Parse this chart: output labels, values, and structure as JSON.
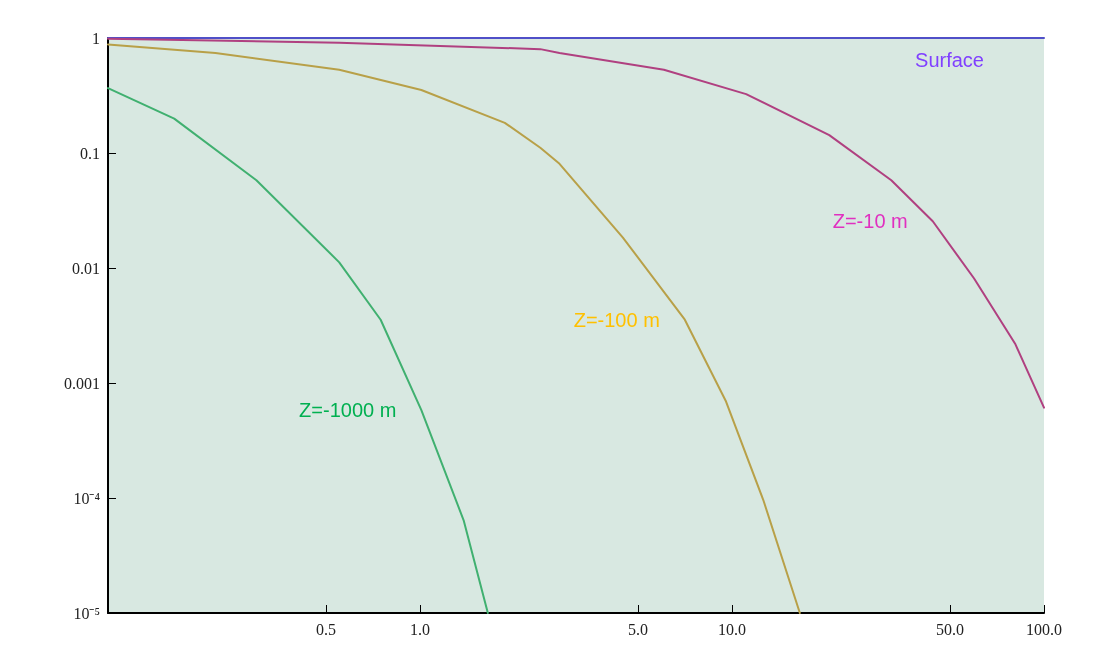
{
  "chart_data": {
    "type": "line",
    "log": "xy",
    "grid": false,
    "marker": "none",
    "line_style": "solid",
    "xlim": [
      0.1,
      100
    ],
    "ylim": [
      1e-05,
      1
    ],
    "xticks": [
      0.5,
      {
        "value": 1,
        "label": "1.0"
      },
      {
        "value": 5,
        "label": "5.0"
      },
      {
        "value": 10,
        "label": "10.0"
      },
      {
        "value": 50,
        "label": "50.0"
      },
      {
        "value": 100,
        "label": "100.0"
      }
    ],
    "yticks": [
      1,
      0.1,
      0.01,
      0.001,
      {
        "value": 0.0001,
        "label": "10⁻⁴"
      },
      {
        "value": 1e-05,
        "label": "10⁻⁵"
      }
    ],
    "series": [
      {
        "name": "Surface",
        "color": "#5050c8",
        "x": [
          0.1,
          100
        ],
        "values": [
          1,
          1
        ]
      },
      {
        "name": "Z=-10 m",
        "color": "#b04080",
        "x": [
          0.1,
          0.551,
          2.43,
          2.8,
          6.05,
          11.1,
          20.5,
          32.4,
          44,
          59.7,
          81,
          100
        ],
        "values": [
          0.985,
          0.91,
          0.8,
          0.74,
          0.53,
          0.325,
          0.143,
          0.058,
          0.0255,
          0.0081,
          0.00217,
          0.00061
        ]
      },
      {
        "name": "Z=-100 m",
        "color": "#b8a048",
        "x": [
          0.1,
          0.221,
          0.551,
          1.01,
          1.87,
          2.43,
          2.8,
          4.47,
          7.06,
          9.57,
          12.6,
          16.5
        ],
        "values": [
          0.88,
          0.74,
          0.53,
          0.353,
          0.183,
          0.111,
          0.0805,
          0.0184,
          0.00355,
          0.00069,
          9.6e-05,
          1e-05
        ]
      },
      {
        "name": "Z=-1000 m",
        "color": "#40b070",
        "x": [
          0.1,
          0.163,
          0.299,
          0.551,
          0.748,
          1.01,
          1.38,
          1.65
        ],
        "values": [
          0.367,
          0.199,
          0.058,
          0.0112,
          0.00355,
          0.00058,
          6.4e-05,
          1e-05
        ]
      }
    ]
  }
}
